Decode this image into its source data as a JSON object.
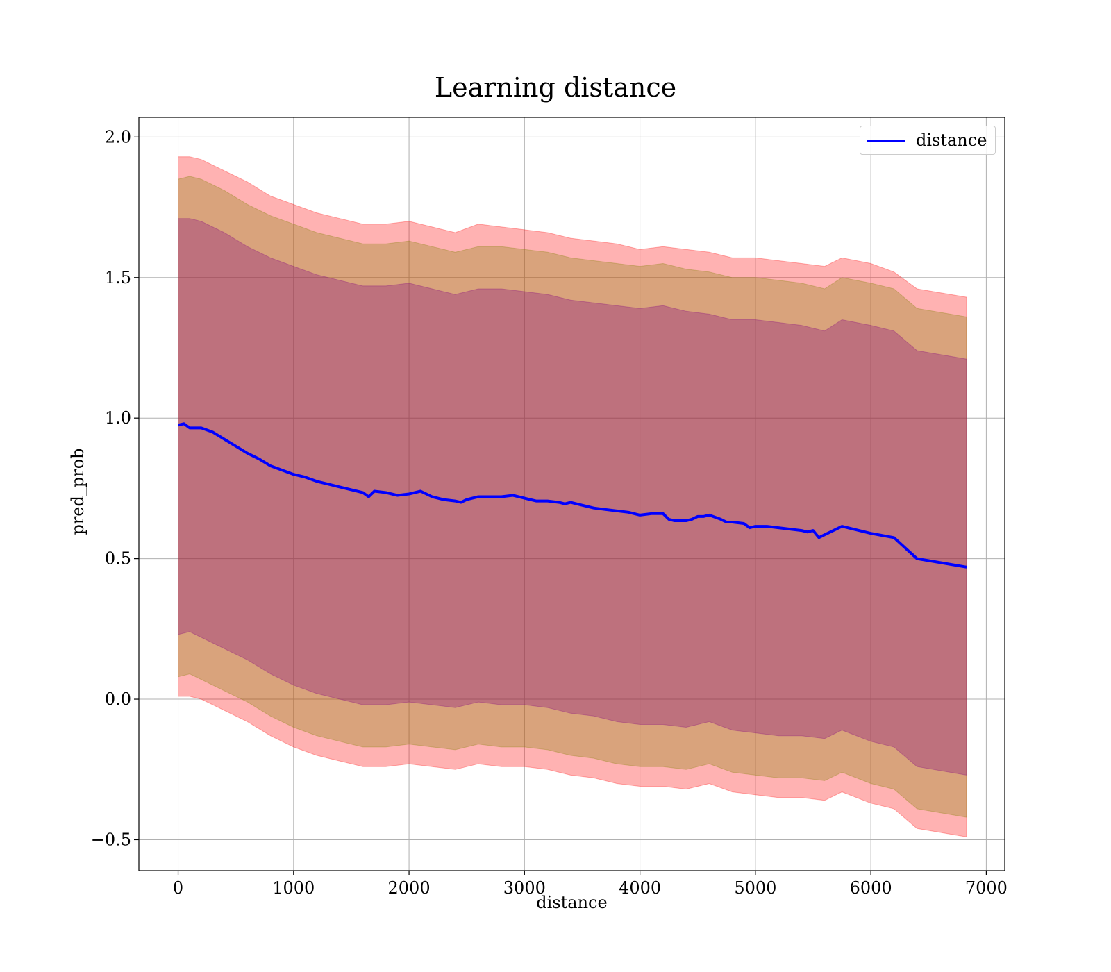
{
  "chart_data": {
    "type": "line",
    "title": "Learning distance",
    "xlabel": "distance",
    "ylabel": "pred_prob",
    "xlim": [
      -340,
      7160
    ],
    "ylim": [
      -0.61,
      2.07
    ],
    "x_ticks": [
      0,
      1000,
      2000,
      3000,
      4000,
      5000,
      6000,
      7000
    ],
    "x_tick_labels": [
      "0",
      "1000",
      "2000",
      "3000",
      "4000",
      "5000",
      "6000",
      "7000"
    ],
    "y_ticks": [
      -0.5,
      0.0,
      0.5,
      1.0,
      1.5,
      2.0
    ],
    "y_tick_labels": [
      "−0.5",
      "0.0",
      "0.5",
      "1.0",
      "1.5",
      "2.0"
    ],
    "grid": true,
    "legend_position": "top-right",
    "series": [
      {
        "name": "distance",
        "color": "#0000ff",
        "x": [
          0,
          50,
          100,
          200,
          300,
          400,
          500,
          600,
          700,
          800,
          900,
          1000,
          1100,
          1200,
          1300,
          1400,
          1500,
          1600,
          1650,
          1700,
          1800,
          1900,
          2000,
          2100,
          2200,
          2300,
          2400,
          2450,
          2500,
          2600,
          2700,
          2800,
          2900,
          3000,
          3100,
          3200,
          3300,
          3350,
          3400,
          3500,
          3600,
          3700,
          3800,
          3900,
          4000,
          4100,
          4200,
          4250,
          4300,
          4400,
          4450,
          4500,
          4550,
          4600,
          4700,
          4750,
          4800,
          4900,
          4950,
          5000,
          5100,
          5200,
          5300,
          5400,
          5450,
          5500,
          5550,
          5600,
          5750,
          6000,
          6200,
          6400,
          6830
        ],
        "values": [
          0.975,
          0.98,
          0.965,
          0.965,
          0.95,
          0.925,
          0.9,
          0.875,
          0.855,
          0.83,
          0.815,
          0.8,
          0.79,
          0.775,
          0.765,
          0.755,
          0.745,
          0.735,
          0.72,
          0.74,
          0.735,
          0.725,
          0.73,
          0.74,
          0.72,
          0.71,
          0.705,
          0.7,
          0.71,
          0.72,
          0.72,
          0.72,
          0.725,
          0.715,
          0.705,
          0.705,
          0.7,
          0.695,
          0.7,
          0.69,
          0.68,
          0.675,
          0.67,
          0.665,
          0.655,
          0.66,
          0.66,
          0.64,
          0.635,
          0.635,
          0.64,
          0.65,
          0.65,
          0.655,
          0.64,
          0.63,
          0.63,
          0.625,
          0.61,
          0.615,
          0.615,
          0.61,
          0.605,
          0.6,
          0.595,
          0.6,
          0.575,
          0.585,
          0.615,
          0.59,
          0.575,
          0.5,
          0.47
        ]
      }
    ],
    "bands": [
      {
        "color": "#ff0000",
        "opacity": 0.3,
        "x": [
          0,
          100,
          200,
          400,
          600,
          800,
          1000,
          1200,
          1400,
          1600,
          1800,
          2000,
          2200,
          2400,
          2600,
          2800,
          3000,
          3200,
          3400,
          3600,
          3800,
          4000,
          4200,
          4400,
          4600,
          4800,
          5000,
          5200,
          5400,
          5600,
          5750,
          6000,
          6200,
          6400,
          6830
        ],
        "upper": [
          1.93,
          1.93,
          1.92,
          1.88,
          1.84,
          1.79,
          1.76,
          1.73,
          1.71,
          1.69,
          1.69,
          1.7,
          1.68,
          1.66,
          1.69,
          1.68,
          1.67,
          1.66,
          1.64,
          1.63,
          1.62,
          1.6,
          1.61,
          1.6,
          1.59,
          1.57,
          1.57,
          1.56,
          1.55,
          1.54,
          1.57,
          1.55,
          1.52,
          1.46,
          1.43
        ],
        "lower": [
          0.01,
          0.01,
          0.0,
          -0.04,
          -0.08,
          -0.13,
          -0.17,
          -0.2,
          -0.22,
          -0.24,
          -0.24,
          -0.23,
          -0.24,
          -0.25,
          -0.23,
          -0.24,
          -0.24,
          -0.25,
          -0.27,
          -0.28,
          -0.3,
          -0.31,
          -0.31,
          -0.32,
          -0.3,
          -0.33,
          -0.34,
          -0.35,
          -0.35,
          -0.36,
          -0.33,
          -0.37,
          -0.39,
          -0.46,
          -0.49
        ]
      },
      {
        "color": "#808000",
        "opacity": 0.3,
        "x": [
          0,
          100,
          200,
          400,
          600,
          800,
          1000,
          1200,
          1400,
          1600,
          1800,
          2000,
          2200,
          2400,
          2600,
          2800,
          3000,
          3200,
          3400,
          3600,
          3800,
          4000,
          4200,
          4400,
          4600,
          4800,
          5000,
          5200,
          5400,
          5600,
          5750,
          6000,
          6200,
          6400,
          6830
        ],
        "upper": [
          1.85,
          1.86,
          1.85,
          1.81,
          1.76,
          1.72,
          1.69,
          1.66,
          1.64,
          1.62,
          1.62,
          1.63,
          1.61,
          1.59,
          1.61,
          1.61,
          1.6,
          1.59,
          1.57,
          1.56,
          1.55,
          1.54,
          1.55,
          1.53,
          1.52,
          1.5,
          1.5,
          1.49,
          1.48,
          1.46,
          1.5,
          1.48,
          1.46,
          1.39,
          1.36
        ],
        "lower": [
          0.08,
          0.09,
          0.07,
          0.03,
          -0.01,
          -0.06,
          -0.1,
          -0.13,
          -0.15,
          -0.17,
          -0.17,
          -0.16,
          -0.17,
          -0.18,
          -0.16,
          -0.17,
          -0.17,
          -0.18,
          -0.2,
          -0.21,
          -0.23,
          -0.24,
          -0.24,
          -0.25,
          -0.23,
          -0.26,
          -0.27,
          -0.28,
          -0.28,
          -0.29,
          -0.26,
          -0.3,
          -0.32,
          -0.39,
          -0.42
        ]
      },
      {
        "color": "#800080",
        "opacity": 0.3,
        "x": [
          0,
          100,
          200,
          400,
          600,
          800,
          1000,
          1200,
          1400,
          1600,
          1800,
          2000,
          2200,
          2400,
          2600,
          2800,
          3000,
          3200,
          3400,
          3600,
          3800,
          4000,
          4200,
          4400,
          4600,
          4800,
          5000,
          5200,
          5400,
          5600,
          5750,
          6000,
          6200,
          6400,
          6830
        ],
        "upper": [
          1.71,
          1.71,
          1.7,
          1.66,
          1.61,
          1.57,
          1.54,
          1.51,
          1.49,
          1.47,
          1.47,
          1.48,
          1.46,
          1.44,
          1.46,
          1.46,
          1.45,
          1.44,
          1.42,
          1.41,
          1.4,
          1.39,
          1.4,
          1.38,
          1.37,
          1.35,
          1.35,
          1.34,
          1.33,
          1.31,
          1.35,
          1.33,
          1.31,
          1.24,
          1.21
        ],
        "lower": [
          0.23,
          0.24,
          0.22,
          0.18,
          0.14,
          0.09,
          0.05,
          0.02,
          0.0,
          -0.02,
          -0.02,
          -0.01,
          -0.02,
          -0.03,
          -0.01,
          -0.02,
          -0.02,
          -0.03,
          -0.05,
          -0.06,
          -0.08,
          -0.09,
          -0.09,
          -0.1,
          -0.08,
          -0.11,
          -0.12,
          -0.13,
          -0.13,
          -0.14,
          -0.11,
          -0.15,
          -0.17,
          -0.24,
          -0.27
        ]
      }
    ]
  }
}
